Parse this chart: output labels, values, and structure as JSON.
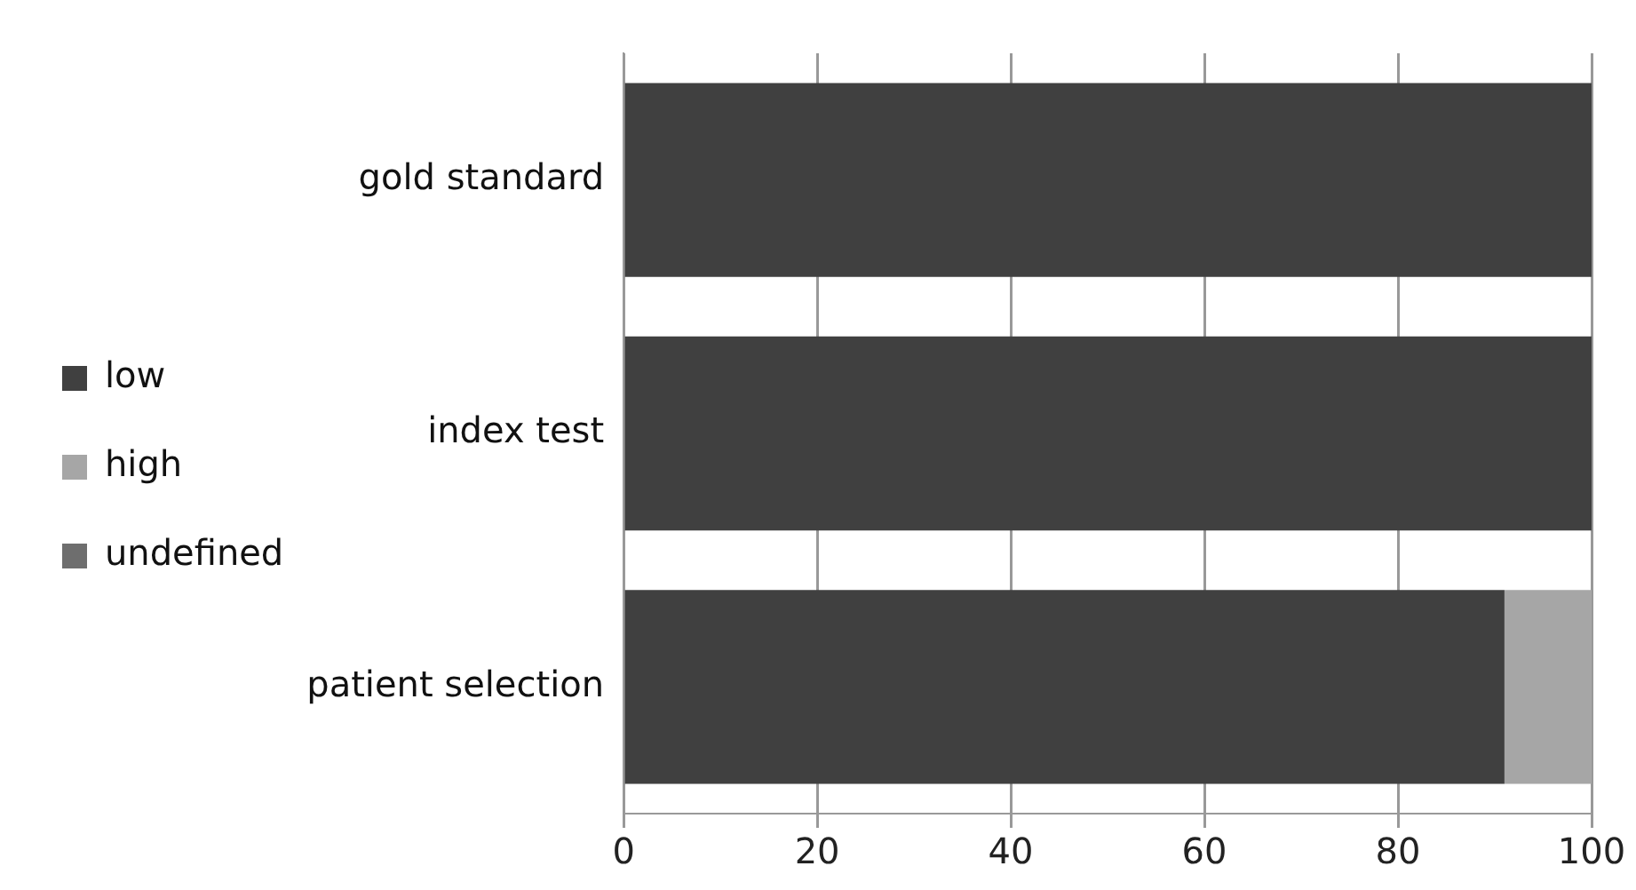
{
  "chart_data": {
    "type": "bar",
    "orientation": "horizontal",
    "stacked": true,
    "categories": [
      "gold standard",
      "index test",
      "patient selection"
    ],
    "series": [
      {
        "name": "low",
        "color": "#404040",
        "values": [
          100,
          100,
          91
        ]
      },
      {
        "name": "high",
        "color": "#a6a6a6",
        "values": [
          0,
          0,
          9
        ]
      },
      {
        "name": "undefined",
        "color": "#6e6e6e",
        "values": [
          0,
          0,
          0
        ]
      }
    ],
    "xlim": [
      0,
      100
    ],
    "xticks": [
      0,
      20,
      40,
      60,
      80,
      100
    ],
    "grid": "x",
    "legend": "left"
  }
}
